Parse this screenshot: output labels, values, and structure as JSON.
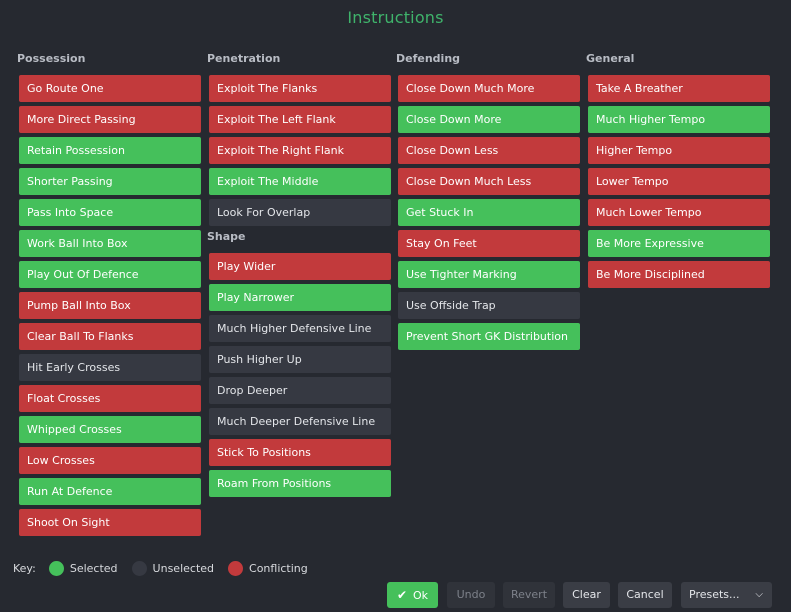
{
  "title": "Instructions",
  "colors": {
    "selected": "#45c05b",
    "unselected": "#363942",
    "conflicting": "#c23a3c"
  },
  "columns": [
    {
      "heading": "Possession",
      "items": [
        {
          "label": "Go Route One",
          "state": "conflicting"
        },
        {
          "label": "More Direct Passing",
          "state": "conflicting"
        },
        {
          "label": "Retain Possession",
          "state": "selected"
        },
        {
          "label": "Shorter Passing",
          "state": "selected"
        },
        {
          "label": "Pass Into Space",
          "state": "selected"
        },
        {
          "label": "Work Ball Into Box",
          "state": "selected"
        },
        {
          "label": "Play Out Of Defence",
          "state": "selected"
        },
        {
          "label": "Pump Ball Into Box",
          "state": "conflicting"
        },
        {
          "label": "Clear Ball To Flanks",
          "state": "conflicting"
        },
        {
          "label": "Hit Early Crosses",
          "state": "unselected"
        },
        {
          "label": "Float Crosses",
          "state": "conflicting"
        },
        {
          "label": "Whipped Crosses",
          "state": "selected"
        },
        {
          "label": "Low Crosses",
          "state": "conflicting"
        },
        {
          "label": "Run At Defence",
          "state": "selected"
        },
        {
          "label": "Shoot On Sight",
          "state": "conflicting"
        }
      ]
    },
    {
      "heading": "Penetration",
      "items": [
        {
          "label": "Exploit The Flanks",
          "state": "conflicting"
        },
        {
          "label": "Exploit The Left Flank",
          "state": "conflicting"
        },
        {
          "label": "Exploit The Right Flank",
          "state": "conflicting"
        },
        {
          "label": "Exploit The Middle",
          "state": "selected"
        },
        {
          "label": "Look For Overlap",
          "state": "unselected"
        }
      ],
      "subheading": "Shape",
      "subitems": [
        {
          "label": "Play Wider",
          "state": "conflicting"
        },
        {
          "label": "Play Narrower",
          "state": "selected"
        },
        {
          "label": "Much Higher Defensive Line",
          "state": "unselected"
        },
        {
          "label": "Push Higher Up",
          "state": "unselected"
        },
        {
          "label": "Drop Deeper",
          "state": "unselected"
        },
        {
          "label": "Much Deeper Defensive Line",
          "state": "unselected"
        },
        {
          "label": "Stick To Positions",
          "state": "conflicting"
        },
        {
          "label": "Roam From Positions",
          "state": "selected"
        }
      ]
    },
    {
      "heading": "Defending",
      "items": [
        {
          "label": "Close Down Much More",
          "state": "conflicting"
        },
        {
          "label": "Close Down More",
          "state": "selected"
        },
        {
          "label": "Close Down Less",
          "state": "conflicting"
        },
        {
          "label": "Close Down Much Less",
          "state": "conflicting"
        },
        {
          "label": "Get Stuck In",
          "state": "selected"
        },
        {
          "label": "Stay On Feet",
          "state": "conflicting"
        },
        {
          "label": "Use Tighter Marking",
          "state": "selected"
        },
        {
          "label": "Use Offside Trap",
          "state": "unselected"
        },
        {
          "label": "Prevent Short GK Distribution",
          "state": "selected"
        }
      ]
    },
    {
      "heading": "General",
      "items": [
        {
          "label": "Take A Breather",
          "state": "conflicting"
        },
        {
          "label": "Much Higher Tempo",
          "state": "selected"
        },
        {
          "label": "Higher Tempo",
          "state": "conflicting"
        },
        {
          "label": "Lower Tempo",
          "state": "conflicting"
        },
        {
          "label": "Much Lower Tempo",
          "state": "conflicting"
        },
        {
          "label": "Be More Expressive",
          "state": "selected"
        },
        {
          "label": "Be More Disciplined",
          "state": "conflicting"
        }
      ]
    }
  ],
  "key": {
    "label": "Key:",
    "selected": "Selected",
    "unselected": "Unselected",
    "conflicting": "Conflicting"
  },
  "footer": {
    "ok_icon": "check-icon",
    "ok": "Ok",
    "undo": "Undo",
    "revert": "Revert",
    "clear": "Clear",
    "cancel": "Cancel",
    "presets": "Presets...",
    "presets_icon": "chevron-down-icon"
  }
}
